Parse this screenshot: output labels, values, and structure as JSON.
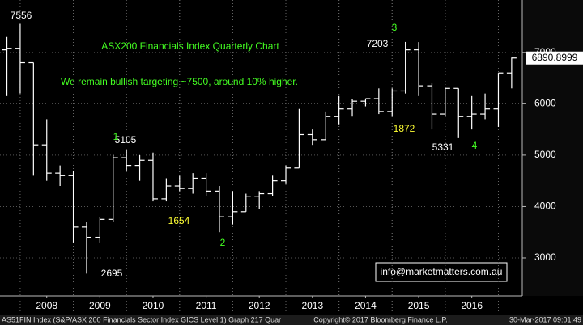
{
  "chart_data": {
    "type": "ohlc",
    "title": "ASX200 Financials Index Quarterly Chart",
    "subtitle": "We remain bullish targeting ~7500, around 10% higher.",
    "x": [
      2007.75,
      2008.0,
      2008.25,
      2008.5,
      2008.75,
      2009.0,
      2009.25,
      2009.5,
      2009.75,
      2010.0,
      2010.25,
      2010.5,
      2010.75,
      2011.0,
      2011.25,
      2011.5,
      2011.75,
      2012.0,
      2012.25,
      2012.5,
      2012.75,
      2013.0,
      2013.25,
      2013.5,
      2013.75,
      2014.0,
      2014.25,
      2014.5,
      2014.75,
      2015.0,
      2015.25,
      2015.5,
      2015.75,
      2016.0,
      2016.25,
      2016.5,
      2016.75,
      2017.0,
      2017.25
    ],
    "open": [
      7050,
      7080,
      6800,
      5200,
      4650,
      4600,
      3600,
      3400,
      3750,
      4950,
      4800,
      4900,
      4150,
      4400,
      4350,
      4550,
      4300,
      3800,
      3900,
      4200,
      4250,
      4500,
      4750,
      5400,
      5300,
      5750,
      5900,
      6050,
      6100,
      5850,
      6250,
      7050,
      6350,
      5800,
      6300,
      5750,
      5800,
      5900,
      6600
    ],
    "high": [
      7300,
      7556,
      6800,
      5700,
      4800,
      4700,
      3700,
      3800,
      5000,
      5105,
      5000,
      5050,
      4550,
      4600,
      4650,
      4650,
      4400,
      4300,
      4250,
      4300,
      4600,
      4800,
      5900,
      5500,
      5850,
      6150,
      6100,
      6100,
      6300,
      6300,
      7203,
      7200,
      6400,
      6300,
      6300,
      6150,
      6200,
      6600,
      6900
    ],
    "low": [
      6150,
      6200,
      4600,
      4500,
      4400,
      3300,
      2695,
      3300,
      3700,
      4700,
      4500,
      4100,
      4100,
      4300,
      4250,
      4200,
      3500,
      3650,
      3900,
      3950,
      4200,
      4450,
      4750,
      5200,
      5300,
      5600,
      5750,
      5950,
      5800,
      5750,
      6200,
      6150,
      5500,
      5750,
      5331,
      5500,
      5700,
      5550,
      6300
    ],
    "close": [
      7080,
      6800,
      5200,
      4650,
      4600,
      3600,
      3400,
      3750,
      4950,
      4800,
      4900,
      4150,
      4400,
      4350,
      4550,
      4300,
      3800,
      3900,
      4200,
      4250,
      4500,
      4750,
      5400,
      5300,
      5750,
      5900,
      6050,
      6100,
      5850,
      6250,
      7050,
      6350,
      5800,
      6300,
      5750,
      5800,
      5900,
      6600,
      6890.8999
    ],
    "color": "#ffffff",
    "xlim": [
      2007.62,
      2017.45
    ],
    "xticks": [
      {
        "value": 2008.5,
        "label": "2008"
      },
      {
        "value": 2009.5,
        "label": "2009"
      },
      {
        "value": 2010.5,
        "label": "2010"
      },
      {
        "value": 2011.5,
        "label": "2011"
      },
      {
        "value": 2012.5,
        "label": "2012"
      },
      {
        "value": 2013.5,
        "label": "2013"
      },
      {
        "value": 2014.5,
        "label": "2014"
      },
      {
        "value": 2015.5,
        "label": "2015"
      },
      {
        "value": 2016.5,
        "label": "2016"
      }
    ],
    "ylim": [
      2260,
      8020
    ],
    "yticks": [
      3000,
      4000,
      5000,
      6000,
      7000
    ],
    "grid": true,
    "annotations": [
      "7556",
      "5105",
      "1",
      "2695",
      "1654",
      "2",
      "7203",
      "3",
      "1872",
      "5331",
      "4"
    ],
    "contact": "info@marketmatters.com.au",
    "footer": {
      "left": "AS51FIN Index (S&P/ASX 200 Financials Sector Index GICS Level 1) Graph 217  Quar",
      "center": "Copyright© 2017 Bloomberg Finance L.P.",
      "right": "30-Mar-2017 09:01:49"
    }
  }
}
